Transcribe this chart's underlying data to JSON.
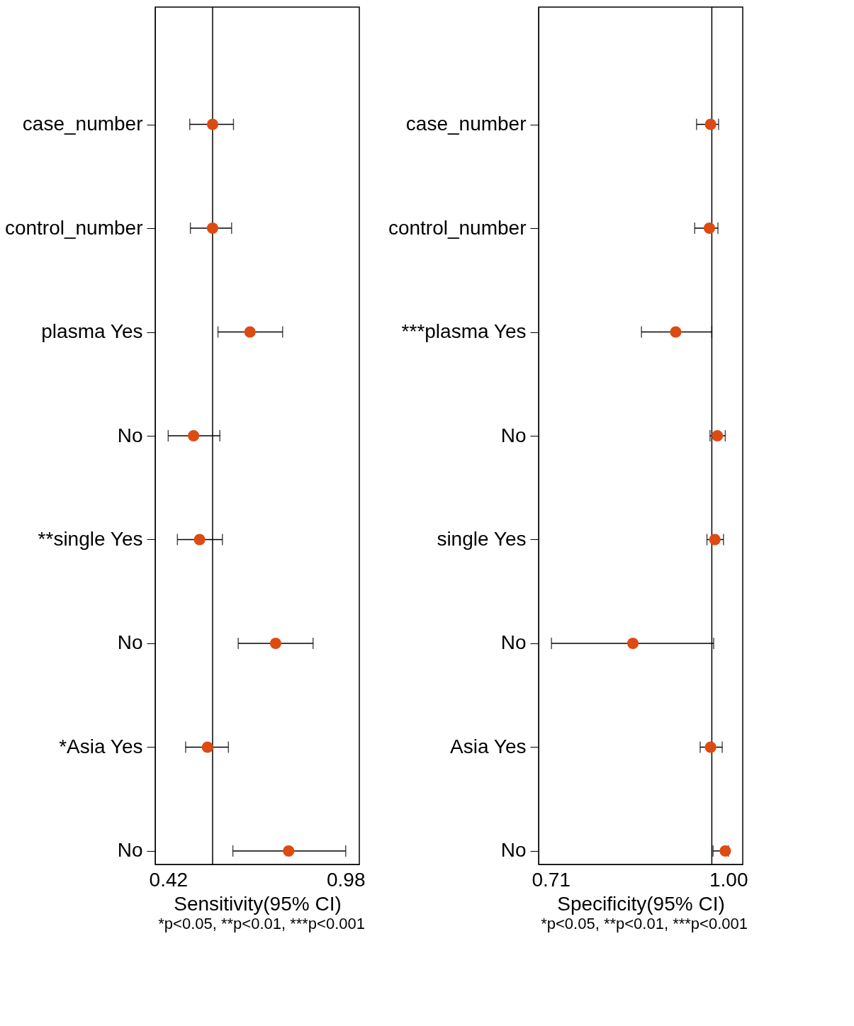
{
  "chart_data": [
    {
      "type": "scatter",
      "orientation": "horizontal",
      "categories": [
        "case_number",
        "control_number",
        "plasma Yes",
        "No",
        "**single Yes",
        "No",
        "*Asia Yes",
        "No"
      ],
      "color": "#dd4a12",
      "marker": "circle",
      "grid": false,
      "values": [
        0.56,
        0.56,
        0.678,
        0.5,
        0.519,
        0.759,
        0.544,
        0.8
      ],
      "errors": [
        [
          0.488,
          0.626
        ],
        [
          0.49,
          0.62
        ],
        [
          0.577,
          0.781
        ],
        [
          0.42,
          0.583
        ],
        [
          0.449,
          0.591
        ],
        [
          0.641,
          0.877
        ],
        [
          0.475,
          0.61
        ],
        [
          0.624,
          0.98
        ]
      ],
      "xlim": [
        0.379,
        1.023
      ],
      "xticks": [
        0.42,
        0.98
      ],
      "xlabel": "Sensitivity(95% CI)",
      "ref_lines": [
        {
          "axis": "x",
          "value": 0.56
        }
      ],
      "annotations": [
        "*p<0.05, **p<0.01, ***p<0.001"
      ]
    },
    {
      "type": "scatter",
      "orientation": "horizontal",
      "categories": [
        "case_number",
        "control_number",
        "***plasma Yes",
        "No",
        "single Yes",
        "No",
        "Asia Yes",
        "No"
      ],
      "color": "#dd4a12",
      "marker": "circle",
      "grid": false,
      "values": [
        0.971,
        0.969,
        0.914,
        0.982,
        0.978,
        0.844,
        0.971,
        0.995
      ],
      "errors": [
        [
          0.948,
          0.984
        ],
        [
          0.945,
          0.983
        ],
        [
          0.858,
          0.973
        ],
        [
          0.97,
          0.995
        ],
        [
          0.965,
          0.992
        ],
        [
          0.711,
          0.976
        ],
        [
          0.954,
          0.99
        ],
        [
          0.975,
          1.0
        ]
      ],
      "xlim": [
        0.69,
        1.0235
      ],
      "xticks": [
        0.71,
        {
          "value": 1.0,
          "label": "1.00"
        }
      ],
      "xlabel": "Specificity(95% CI)",
      "ref_lines": [
        {
          "axis": "x",
          "value": 0.973
        }
      ],
      "annotations": [
        "*p<0.05, **p<0.01, ***p<0.001"
      ]
    }
  ]
}
